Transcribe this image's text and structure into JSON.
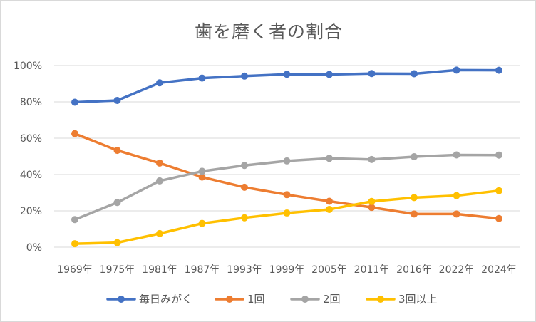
{
  "chart_data": {
    "type": "line",
    "title": "歯を磨く者の割合",
    "categories": [
      "1969年",
      "1975年",
      "1981年",
      "1987年",
      "1993年",
      "1999年",
      "2005年",
      "2011年",
      "2016年",
      "2022年",
      "2024年"
    ],
    "y_tick_labels": [
      "0%",
      "20%",
      "40%",
      "60%",
      "80%",
      "100%"
    ],
    "ylim": [
      0,
      100
    ],
    "grid": true,
    "legend_position": "bottom",
    "series": [
      {
        "name": "毎日みがく",
        "color": "#4472c4",
        "values": [
          79.8,
          80.8,
          90.5,
          93.1,
          94.2,
          95.2,
          95.1,
          95.6,
          95.5,
          97.5,
          97.4
        ]
      },
      {
        "name": "1回",
        "color": "#ed7d31",
        "values": [
          62.5,
          53.3,
          46.3,
          38.6,
          33.0,
          28.9,
          25.3,
          21.9,
          18.3,
          18.3,
          15.8
        ]
      },
      {
        "name": "2回",
        "color": "#a5a5a5",
        "values": [
          15.2,
          24.6,
          36.5,
          41.8,
          45.0,
          47.5,
          48.9,
          48.3,
          49.8,
          50.8,
          50.7
        ]
      },
      {
        "name": "3回以上",
        "color": "#ffc000",
        "values": [
          1.9,
          2.5,
          7.5,
          13.1,
          16.2,
          18.8,
          20.8,
          25.2,
          27.3,
          28.4,
          31.1
        ]
      }
    ]
  }
}
